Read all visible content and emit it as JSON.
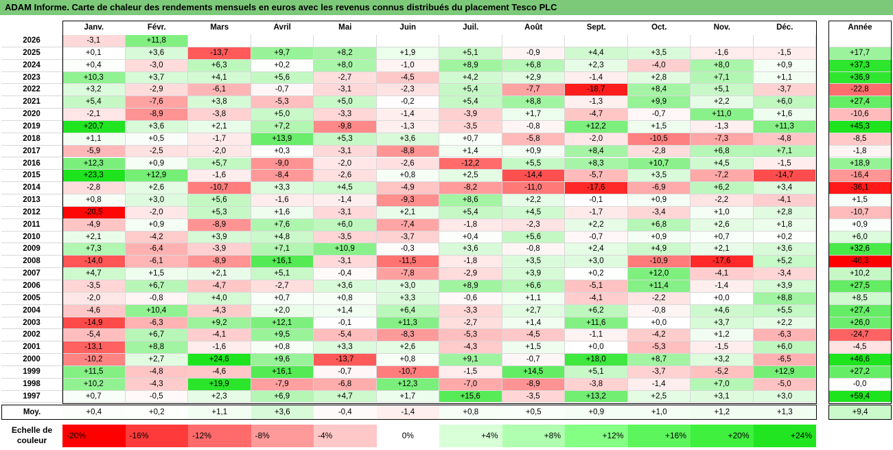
{
  "chart_data": {
    "type": "heatmap",
    "title": "ADAM Informe. Carte de chaleur des rendements mensuels en euros avec les revenus connus distribués du placement Tesco PLC",
    "columns": [
      "Janv.",
      "Févr.",
      "Mars",
      "Avril",
      "Mai",
      "Juin",
      "Juil.",
      "Août",
      "Sept.",
      "Oct.",
      "Nov.",
      "Déc."
    ],
    "year_header": "Année",
    "rows": [
      {
        "year": "2026",
        "values": [
          "-3,1",
          "+11,8",
          "",
          "",
          "",
          "",
          "",
          "",
          "",
          "",
          "",
          ""
        ],
        "annual": ""
      },
      {
        "year": "2025",
        "values": [
          "+0,1",
          "+3,6",
          "-13,7",
          "+9,7",
          "+8,2",
          "+1,9",
          "+5,1",
          "-0,9",
          "+4,4",
          "+3,5",
          "-1,6",
          "-1,5"
        ],
        "annual": "+17,7"
      },
      {
        "year": "2024",
        "values": [
          "+0,4",
          "-3,0",
          "+6,3",
          "+0,2",
          "+8,0",
          "-1,0",
          "+8,9",
          "+6,8",
          "+2,3",
          "-4,0",
          "+8,0",
          "+0,9"
        ],
        "annual": "+37,3"
      },
      {
        "year": "2023",
        "values": [
          "+10,3",
          "+3,7",
          "+4,1",
          "+5,6",
          "-2,7",
          "-4,5",
          "+4,2",
          "+2,9",
          "-1,4",
          "+2,8",
          "+7,1",
          "+1,1"
        ],
        "annual": "+36,9"
      },
      {
        "year": "2022",
        "values": [
          "+3,2",
          "-2,9",
          "-6,1",
          "-0,7",
          "-3,1",
          "-2,3",
          "+5,4",
          "-7,7",
          "-18,7",
          "+8,4",
          "+5,1",
          "-3,7"
        ],
        "annual": "-22,8"
      },
      {
        "year": "2021",
        "values": [
          "+5,4",
          "-7,6",
          "+3,8",
          "-5,3",
          "+5,0",
          "-0,2",
          "+5,4",
          "+8,8",
          "-1,3",
          "+9,9",
          "+2,2",
          "+6,0"
        ],
        "annual": "+27,4"
      },
      {
        "year": "2020",
        "values": [
          "-2,1",
          "-8,9",
          "-3,8",
          "+5,0",
          "-3,3",
          "-1,4",
          "-3,9",
          "+1,7",
          "-4,7",
          "-0,7",
          "+11,0",
          "+1,6"
        ],
        "annual": "-10,6"
      },
      {
        "year": "2019",
        "values": [
          "+20,7",
          "+3,6",
          "+2,1",
          "+7,2",
          "-9,8",
          "-1,3",
          "-3,5",
          "-0,8",
          "+12,2",
          "+1,5",
          "-1,3",
          "+11,3"
        ],
        "annual": "+45,3"
      },
      {
        "year": "2018",
        "values": [
          "+1,1",
          "+0,5",
          "-1,7",
          "+13,9",
          "+5,3",
          "+3,6",
          "+0,7",
          "-5,8",
          "-2,0",
          "-10,5",
          "-7,3",
          "-4,8"
        ],
        "annual": "-8,5"
      },
      {
        "year": "2017",
        "values": [
          "-5,9",
          "-2,5",
          "-2,0",
          "+0,3",
          "-3,1",
          "-8,8",
          "+1,4",
          "+0,9",
          "+8,4",
          "-2,8",
          "+6,8",
          "+7,1"
        ],
        "annual": "-1,8"
      },
      {
        "year": "2016",
        "values": [
          "+12,3",
          "+0,9",
          "+5,7",
          "-9,0",
          "-2,0",
          "-2,6",
          "-12,2",
          "+5,5",
          "+8,3",
          "+10,7",
          "+4,5",
          "-1,5"
        ],
        "annual": "+18,9"
      },
      {
        "year": "2015",
        "values": [
          "+23,3",
          "+12,9",
          "-1,6",
          "-8,4",
          "-2,6",
          "+0,8",
          "+2,5",
          "-14,4",
          "-5,7",
          "+3,5",
          "-7,2",
          "-14,7"
        ],
        "annual": "-16,4"
      },
      {
        "year": "2014",
        "values": [
          "-2,8",
          "+2,6",
          "-10,7",
          "+3,3",
          "+4,5",
          "-4,9",
          "-8,2",
          "-11,0",
          "-17,6",
          "-6,9",
          "+6,2",
          "+3,4"
        ],
        "annual": "-36,1"
      },
      {
        "year": "2013",
        "values": [
          "+0,8",
          "+3,0",
          "+5,6",
          "-1,6",
          "-1,4",
          "-9,3",
          "+8,6",
          "+2,2",
          "-0,1",
          "+0,9",
          "-2,2",
          "-4,1"
        ],
        "annual": "+1,5"
      },
      {
        "year": "2012",
        "values": [
          "-20,5",
          "-2,0",
          "+5,3",
          "+1,6",
          "-3,1",
          "+2,1",
          "+5,4",
          "+4,5",
          "-1,7",
          "-3,4",
          "+1,0",
          "+2,8"
        ],
        "annual": "-10,7"
      },
      {
        "year": "2011",
        "values": [
          "-4,9",
          "+0,9",
          "-8,9",
          "+7,6",
          "+6,0",
          "-7,4",
          "-1,8",
          "-2,3",
          "+2,2",
          "+6,8",
          "+2,6",
          "+1,8"
        ],
        "annual": "+0,9"
      },
      {
        "year": "2010",
        "values": [
          "+2,1",
          "-4,2",
          "+3,9",
          "+4,8",
          "-3,5",
          "-3,7",
          "+0,4",
          "+5,6",
          "-0,7",
          "+0,9",
          "+0,7",
          "+0,2"
        ],
        "annual": "+6,0"
      },
      {
        "year": "2009",
        "values": [
          "+7,3",
          "-6,4",
          "-3,9",
          "+7,1",
          "+10,9",
          "-0,3",
          "+3,6",
          "-0,8",
          "+2,4",
          "+4,9",
          "+2,1",
          "+3,6"
        ],
        "annual": "+32,6"
      },
      {
        "year": "2008",
        "values": [
          "-14,0",
          "-6,1",
          "-8,9",
          "+16,1",
          "-3,1",
          "-11,5",
          "-1,8",
          "+3,5",
          "+3,0",
          "-10,9",
          "-17,6",
          "+5,2"
        ],
        "annual": "-40,3"
      },
      {
        "year": "2007",
        "values": [
          "+4,7",
          "+1,5",
          "+2,1",
          "+5,1",
          "-0,4",
          "-7,8",
          "-2,9",
          "+3,9",
          "+0,2",
          "+12,0",
          "-4,1",
          "-3,4"
        ],
        "annual": "+10,2"
      },
      {
        "year": "2006",
        "values": [
          "-3,5",
          "+6,7",
          "-4,7",
          "-2,7",
          "+3,6",
          "+3,0",
          "+8,9",
          "+6,6",
          "-5,1",
          "+11,4",
          "-1,4",
          "+3,9"
        ],
        "annual": "+27,5"
      },
      {
        "year": "2005",
        "values": [
          "-2,0",
          "-0,8",
          "+4,0",
          "+0,7",
          "+0,8",
          "+3,3",
          "-0,6",
          "+1,1",
          "-4,1",
          "-2,2",
          "+0,0",
          "+8,8"
        ],
        "annual": "+8,5"
      },
      {
        "year": "2004",
        "values": [
          "-4,6",
          "+10,4",
          "-4,3",
          "+2,0",
          "+1,4",
          "+6,4",
          "-3,3",
          "+2,7",
          "+6,2",
          "-0,8",
          "+4,6",
          "+5,5"
        ],
        "annual": "+27,4"
      },
      {
        "year": "2003",
        "values": [
          "-14,9",
          "-6,3",
          "+9,2",
          "+12,1",
          "-0,1",
          "+11,3",
          "-2,7",
          "+1,4",
          "+11,6",
          "+0,0",
          "+3,7",
          "+2,2"
        ],
        "annual": "+26,0"
      },
      {
        "year": "2002",
        "values": [
          "-5,4",
          "+6,7",
          "-4,1",
          "+9,5",
          "-5,4",
          "-8,3",
          "-5,3",
          "-4,5",
          "-1,1",
          "-4,2",
          "+1,2",
          "-6,3"
        ],
        "annual": "-24,7"
      },
      {
        "year": "2001",
        "values": [
          "-13,1",
          "+8,8",
          "-1,6",
          "+0,8",
          "+3,3",
          "+2,6",
          "-4,3",
          "+1,5",
          "+0,0",
          "-5,3",
          "-1,5",
          "+6,0"
        ],
        "annual": "-4,5"
      },
      {
        "year": "2000",
        "values": [
          "-10,2",
          "+2,7",
          "+24,6",
          "+9,6",
          "-13,7",
          "+0,8",
          "+9,1",
          "-0,7",
          "+18,0",
          "+8,7",
          "+3,2",
          "-6,5"
        ],
        "annual": "+46,6"
      },
      {
        "year": "1999",
        "values": [
          "+11,5",
          "-4,8",
          "-4,6",
          "+16,1",
          "-0,7",
          "-10,7",
          "-1,5",
          "+14,5",
          "+5,1",
          "-3,7",
          "-5,2",
          "+12,9"
        ],
        "annual": "+27,2"
      },
      {
        "year": "1998",
        "values": [
          "+10,2",
          "-4,3",
          "+19,9",
          "-7,9",
          "-6,8",
          "+12,3",
          "-7,0",
          "-8,9",
          "-3,8",
          "-1,4",
          "+7,0",
          "-5,0"
        ],
        "annual": "-0,0"
      },
      {
        "year": "1997",
        "values": [
          "+0,7",
          "-0,5",
          "+2,3",
          "+6,9",
          "+4,7",
          "+1,7",
          "+15,6",
          "-3,5",
          "+13,2",
          "+2,5",
          "+3,1",
          "+3,0"
        ],
        "annual": "+59,4"
      }
    ],
    "average": {
      "label": "Moy.",
      "values": [
        "+0,4",
        "+0,2",
        "+1,1",
        "+3,6",
        "-0,4",
        "-1,4",
        "+0,8",
        "+0,5",
        "+0,9",
        "+1,0",
        "+1,2",
        "+1,3"
      ],
      "annual": "+9,4"
    },
    "scale": {
      "label": "Echelle de couleur",
      "items": [
        {
          "label": "-20%",
          "color": "#ff0000"
        },
        {
          "label": "-16%",
          "color": "#ff3a3a"
        },
        {
          "label": "-12%",
          "color": "#ff6b6b"
        },
        {
          "label": "-8%",
          "color": "#ff9a9a"
        },
        {
          "label": "-4%",
          "color": "#ffc8c8"
        },
        {
          "label": "0%",
          "color": "#ffffff"
        },
        {
          "label": "+4%",
          "color": "#d8ffd8"
        },
        {
          "label": "+8%",
          "color": "#b0ffb0"
        },
        {
          "label": "+12%",
          "color": "#84ff84"
        },
        {
          "label": "+16%",
          "color": "#5cf55c"
        },
        {
          "label": "+20%",
          "color": "#3ff03f"
        },
        {
          "label": "+24%",
          "color": "#22e522"
        }
      ]
    }
  }
}
